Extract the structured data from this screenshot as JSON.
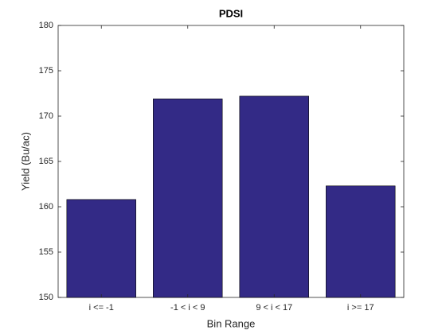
{
  "chart_data": {
    "type": "bar",
    "title": "PDSI",
    "x_label": "Bin Range",
    "y_label": "Yield (Bu/ac)",
    "categories": [
      "i <= -1",
      "-1 < i < 9",
      "9 < i < 17",
      "i >= 17"
    ],
    "values": [
      160.8,
      171.9,
      172.2,
      162.3
    ],
    "color": "#332a86",
    "ylim": [
      150,
      180
    ],
    "yticks": [
      150,
      155,
      160,
      165,
      170,
      175,
      180
    ],
    "grid": false
  }
}
